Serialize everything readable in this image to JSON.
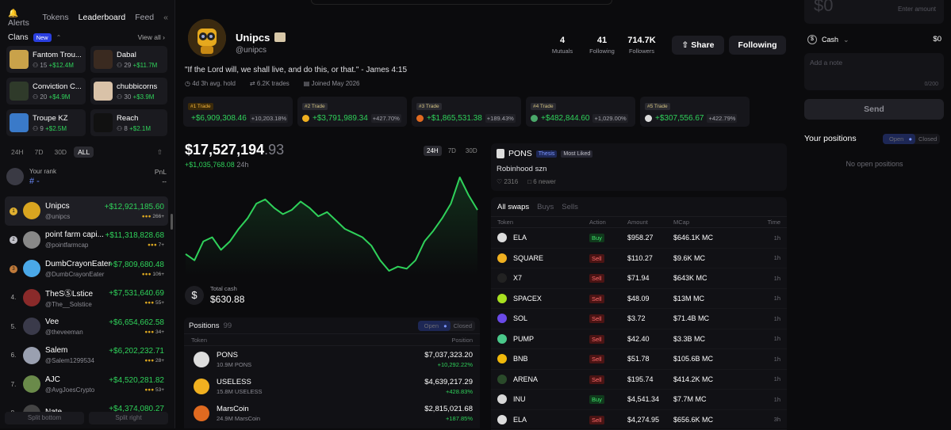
{
  "left": {
    "tabs": [
      "Alerts",
      "Tokens",
      "Leaderboard",
      "Feed"
    ],
    "active_tab": "Leaderboard",
    "clans_title": "Clans",
    "new_badge": "New",
    "view_all": "View all",
    "clans": [
      {
        "name": "Fantom Trou...",
        "members": "15",
        "value": "+$12.4M",
        "color": "#c9a24a"
      },
      {
        "name": "Dabal",
        "members": "29",
        "value": "+$11.7M",
        "color": "#3a2a20"
      },
      {
        "name": "Conviction C...",
        "members": "20",
        "value": "+$4.9M",
        "color": "#2f3a2a"
      },
      {
        "name": "chubbicorns",
        "members": "30",
        "value": "+$3.9M",
        "color": "#d9c2a8"
      },
      {
        "name": "Troupe KZ",
        "members": "9",
        "value": "+$2.5M",
        "color": "#3a7ac9"
      },
      {
        "name": "Reach",
        "members": "8",
        "value": "+$2.1M",
        "color": "#111111"
      }
    ],
    "periods": [
      "24H",
      "7D",
      "30D",
      "ALL"
    ],
    "active_period": "ALL",
    "your_rank_label": "Your rank",
    "your_rank_value": "# -",
    "pnl_label": "PnL",
    "pnl_value": "--",
    "leaderboard": [
      {
        "pos": "1",
        "name": "Unipcs",
        "handle": "@unipcs",
        "pnl": "+$12,921,185.60",
        "icons": "266+",
        "color": "#d9a520"
      },
      {
        "pos": "2",
        "name": "point farm capi...",
        "handle": "@pointfarmcap",
        "pnl": "+$11,318,828.68",
        "icons": "7+",
        "color": "#888888"
      },
      {
        "pos": "3",
        "name": "DumbCrayonEater",
        "handle": "@DumbCrayonEater",
        "pnl": "+$7,809,680.48",
        "icons": "106+",
        "color": "#4aa8e8"
      },
      {
        "pos": "4.",
        "name": "TheSⓈLstice",
        "handle": "@The__Solstice",
        "pnl": "+$7,531,640.69",
        "icons": "55+",
        "color": "#8a2a2a"
      },
      {
        "pos": "5.",
        "name": "Vee",
        "handle": "@theveeman",
        "pnl": "+$6,654,662.58",
        "icons": "34+",
        "color": "#3a3a4a"
      },
      {
        "pos": "6.",
        "name": "Salem",
        "handle": "@Salem1299534",
        "pnl": "+$6,202,232.71",
        "icons": "28+",
        "color": "#9aa0b0"
      },
      {
        "pos": "7.",
        "name": "AJC",
        "handle": "@AvgJoesCrypto",
        "pnl": "+$4,520,281.82",
        "icons": "53+",
        "color": "#6a8a4a"
      },
      {
        "pos": "8.",
        "name": "Nate",
        "handle": "",
        "pnl": "+$4,374,080.27",
        "icons": "",
        "color": "#444444"
      }
    ],
    "split_bottom": "Split bottom",
    "split_right": "Split right"
  },
  "profile": {
    "name": "Unipcs",
    "handle": "@unipcs",
    "stats": [
      {
        "value": "4",
        "label": "Mutuals"
      },
      {
        "value": "41",
        "label": "Following"
      },
      {
        "value": "714.7K",
        "label": "Followers"
      }
    ],
    "share_label": "Share",
    "following_label": "Following",
    "quote": "\"If the Lord will, we shall live, and do this, or that.\" - James 4:15",
    "meta": [
      "4d 3h avg. hold",
      "6.2K trades",
      "Joined May 2026"
    ],
    "top_trades": [
      {
        "tag": "#1 Trade",
        "value": "+$6,909,308.46",
        "pct": "+10,203.18%",
        "color": "#dddddd"
      },
      {
        "tag": "#2 Trade",
        "value": "+$3,791,989.34",
        "pct": "+427.70%",
        "color": "#f0b020"
      },
      {
        "tag": "#3 Trade",
        "value": "+$1,865,531.38",
        "pct": "+189.43%",
        "color": "#e06a20"
      },
      {
        "tag": "#4 Trade",
        "value": "+$482,844.60",
        "pct": "+1,029.00%",
        "color": "#4aa86a"
      },
      {
        "tag": "#5 Trade",
        "value": "+$307,556.67",
        "pct": "+422.79%",
        "color": "#dddddd"
      }
    ]
  },
  "pnl": {
    "value_main": "$17,527,194",
    "value_dec": ".93",
    "change": "+$1,035,768.08",
    "change_period": "24h",
    "periods": [
      "24H",
      "7D",
      "30D"
    ],
    "active_period": "24H",
    "total_cash_label": "Total cash",
    "total_cash": "$630.88",
    "line_color": "#2fd15a"
  },
  "chart_data": {
    "type": "line",
    "series": [
      {
        "values": [
          0.22,
          0.16,
          0.34,
          0.38,
          0.26,
          0.34,
          0.46,
          0.56,
          0.7,
          0.74,
          0.66,
          0.6,
          0.64,
          0.72,
          0.66,
          0.58,
          0.62,
          0.54,
          0.46,
          0.42,
          0.38,
          0.3,
          0.16,
          0.06,
          0.1,
          0.08,
          0.16,
          0.34,
          0.44,
          0.56,
          0.7,
          0.95,
          0.78,
          0.64
        ]
      }
    ],
    "xlabel": "",
    "ylabel": "",
    "grid": false
  },
  "positions": {
    "title": "Positions",
    "count": "99",
    "open_label": "Open",
    "closed_label": "Closed",
    "col_token": "Token",
    "col_position": "Position",
    "rows": [
      {
        "name": "PONS",
        "sub": "10.9M PONS",
        "value": "$7,037,323.20",
        "pct": "+10,292.22%",
        "color": "#dddddd"
      },
      {
        "name": "USELESS",
        "sub": "15.8M USELESS",
        "value": "$4,639,217.29",
        "pct": "+428.83%",
        "color": "#f0b020"
      },
      {
        "name": "MarsCoin",
        "sub": "24.9M MarsCoin",
        "value": "$2,815,021.68",
        "pct": "+187.85%",
        "color": "#e06a20"
      }
    ]
  },
  "thesis": {
    "token": "PONS",
    "badge1": "Thesis",
    "badge2": "Most Liked",
    "text": "Robinhood szn",
    "likes": "2316",
    "newer": "6 newer"
  },
  "swaps": {
    "tabs": [
      "All swaps",
      "Buys",
      "Sells"
    ],
    "active_tab": "All swaps",
    "cols": [
      "Token",
      "Action",
      "Amount",
      "MCap",
      "Time"
    ],
    "rows": [
      {
        "token": "ELA",
        "action": "Buy",
        "amount": "$958.27",
        "mcap": "$646.1K MC",
        "time": "1h",
        "color": "#dddddd"
      },
      {
        "token": "SQUARE",
        "action": "Sell",
        "amount": "$110.27",
        "mcap": "$9.6K MC",
        "time": "1h",
        "color": "#f0b020"
      },
      {
        "token": "X7",
        "action": "Sell",
        "amount": "$71.94",
        "mcap": "$643K MC",
        "time": "1h",
        "color": "#222222"
      },
      {
        "token": "SPACEX",
        "action": "Sell",
        "amount": "$48.09",
        "mcap": "$13M MC",
        "time": "1h",
        "color": "#a8e020"
      },
      {
        "token": "SOL",
        "action": "Sell",
        "amount": "$3.72",
        "mcap": "$71.4B MC",
        "time": "1h",
        "color": "#6a4ae8"
      },
      {
        "token": "PUMP",
        "action": "Sell",
        "amount": "$42.40",
        "mcap": "$3.3B MC",
        "time": "1h",
        "color": "#4ac88a"
      },
      {
        "token": "BNB",
        "action": "Sell",
        "amount": "$51.78",
        "mcap": "$105.6B MC",
        "time": "1h",
        "color": "#f0b90b"
      },
      {
        "token": "ARENA",
        "action": "Sell",
        "amount": "$195.74",
        "mcap": "$414.2K MC",
        "time": "1h",
        "color": "#2a4a2a"
      },
      {
        "token": "INU",
        "action": "Buy",
        "amount": "$4,541.34",
        "mcap": "$7.7M MC",
        "time": "1h",
        "color": "#d8d8d8"
      },
      {
        "token": "ELA",
        "action": "Sell",
        "amount": "$4,274.95",
        "mcap": "$656.6K MC",
        "time": "3h",
        "color": "#dddddd"
      }
    ]
  },
  "trade_panel": {
    "amount_placeholder": "Enter amount",
    "amount_value": "$0",
    "cash_label": "Cash",
    "cash_value": "$0",
    "note_placeholder": "Add a note",
    "note_counter": "0/200",
    "send_label": "Send",
    "your_positions": "Your positions",
    "open_label": "Open",
    "closed_label": "Closed",
    "no_positions": "No open positions"
  }
}
